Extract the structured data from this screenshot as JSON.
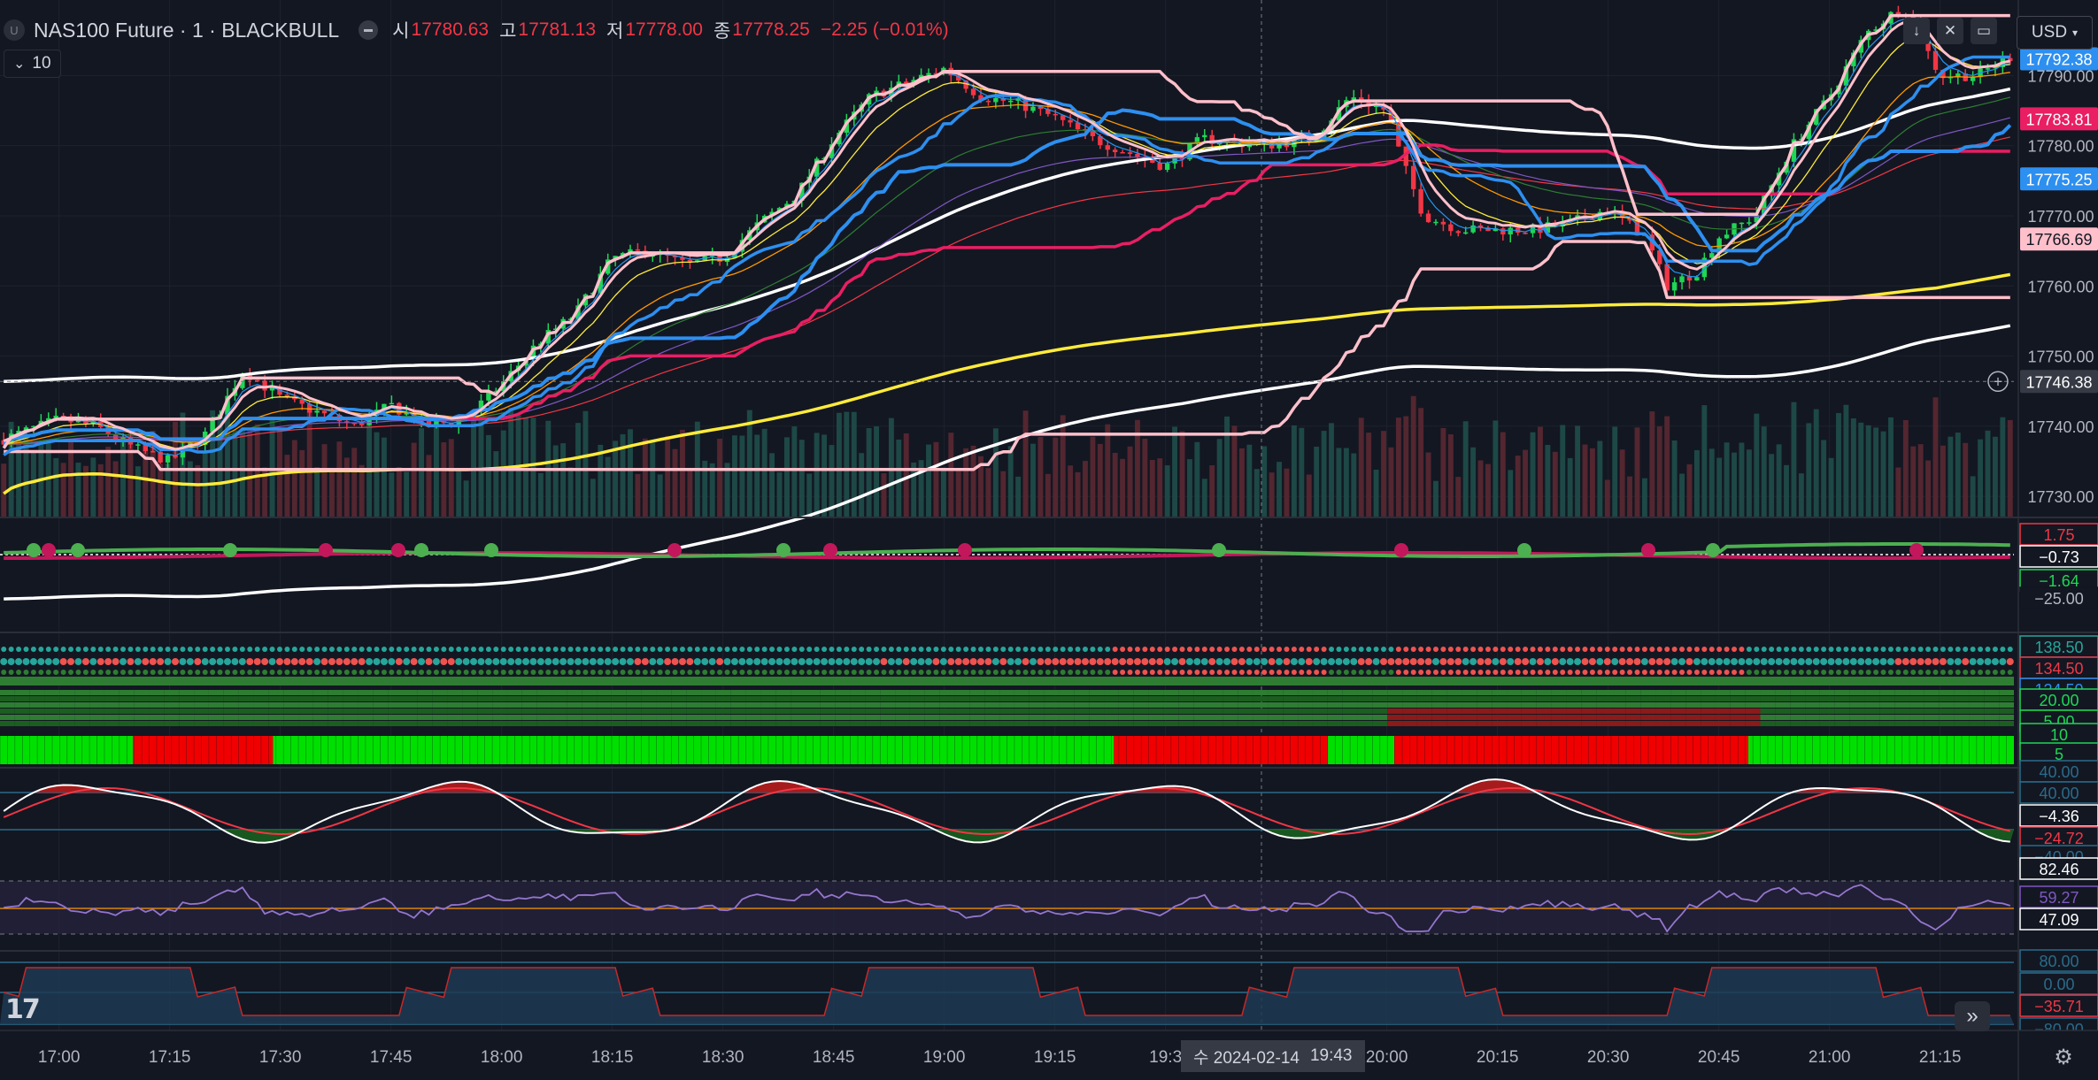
{
  "header": {
    "symbol": "NAS100 Future · 1 · BLACKBULL",
    "symbol_badge": "U",
    "open_label": "시",
    "open": "17780.63",
    "high_label": "고",
    "high": "17781.13",
    "low_label": "저",
    "low": "17778.00",
    "close_label": "종",
    "close": "17778.25",
    "change": "−2.25 (−0.01%)",
    "indicator_count": "10",
    "currency": "USD"
  },
  "crosshair": {
    "date_label": "수  2024-02-14",
    "time_label": "19:43"
  },
  "colors": {
    "background": "#131722",
    "up": "#1fd655",
    "down": "#f23645",
    "ma_blue": "#2d8ff0",
    "ma_pink": "#ffc0cb",
    "ma_crimson": "#e91e63",
    "ma_yellow": "#ffeb3b",
    "ma_white": "#ffffff"
  },
  "chart_data": [
    {
      "type": "candlestick",
      "name": "price",
      "ylim": [
        17727,
        17800
      ],
      "ticks": [
        17730,
        17740,
        17750,
        17760,
        17770,
        17780,
        17790
      ],
      "x_ticks": [
        "17:00",
        "17:15",
        "17:30",
        "17:45",
        "18:00",
        "18:15",
        "18:30",
        "18:45",
        "19:00",
        "19:15",
        "19:3",
        "20:00",
        "20:15",
        "20:30",
        "20:45",
        "21:00",
        "21:15"
      ],
      "close_path": [
        {
          "t": "16:52",
          "v": 17738
        },
        {
          "t": "17:00",
          "v": 17741
        },
        {
          "t": "17:05",
          "v": 17740
        },
        {
          "t": "17:10",
          "v": 17737
        },
        {
          "t": "17:15",
          "v": 17735
        },
        {
          "t": "17:20",
          "v": 17739
        },
        {
          "t": "17:25",
          "v": 17748
        },
        {
          "t": "17:30",
          "v": 17744
        },
        {
          "t": "17:35",
          "v": 17742
        },
        {
          "t": "17:40",
          "v": 17740
        },
        {
          "t": "17:45",
          "v": 17743
        },
        {
          "t": "17:50",
          "v": 17740
        },
        {
          "t": "17:55",
          "v": 17741
        },
        {
          "t": "18:00",
          "v": 17746
        },
        {
          "t": "18:05",
          "v": 17752
        },
        {
          "t": "18:10",
          "v": 17756
        },
        {
          "t": "18:15",
          "v": 17764
        },
        {
          "t": "18:20",
          "v": 17765
        },
        {
          "t": "18:25",
          "v": 17763
        },
        {
          "t": "18:30",
          "v": 17764
        },
        {
          "t": "18:35",
          "v": 17769
        },
        {
          "t": "18:40",
          "v": 17773
        },
        {
          "t": "18:45",
          "v": 17781
        },
        {
          "t": "18:50",
          "v": 17787
        },
        {
          "t": "19:00",
          "v": 17791
        },
        {
          "t": "19:05",
          "v": 17787
        },
        {
          "t": "19:10",
          "v": 17786
        },
        {
          "t": "19:15",
          "v": 17784
        },
        {
          "t": "19:20",
          "v": 17781
        },
        {
          "t": "19:25",
          "v": 17779
        },
        {
          "t": "19:30",
          "v": 17777
        },
        {
          "t": "19:35",
          "v": 17781
        },
        {
          "t": "19:43",
          "v": 17780
        },
        {
          "t": "19:50",
          "v": 17781
        },
        {
          "t": "19:55",
          "v": 17787
        },
        {
          "t": "20:00",
          "v": 17785
        },
        {
          "t": "20:02",
          "v": 17778
        },
        {
          "t": "20:05",
          "v": 17770
        },
        {
          "t": "20:10",
          "v": 17768
        },
        {
          "t": "20:15",
          "v": 17768
        },
        {
          "t": "20:20",
          "v": 17768
        },
        {
          "t": "20:25",
          "v": 17769
        },
        {
          "t": "20:30",
          "v": 17771
        },
        {
          "t": "20:35",
          "v": 17767
        },
        {
          "t": "20:38",
          "v": 17760
        },
        {
          "t": "20:42",
          "v": 17762
        },
        {
          "t": "20:45",
          "v": 17767
        },
        {
          "t": "20:50",
          "v": 17770
        },
        {
          "t": "20:55",
          "v": 17780
        },
        {
          "t": "21:00",
          "v": 17787
        },
        {
          "t": "21:05",
          "v": 17796
        },
        {
          "t": "21:10",
          "v": 17800
        },
        {
          "t": "21:15",
          "v": 17790
        },
        {
          "t": "21:20",
          "v": 17790
        },
        {
          "t": "21:25",
          "v": 17793
        }
      ],
      "price_labels": [
        {
          "value": "17792.38",
          "color": "#2d8ff0"
        },
        {
          "value": "17783.81",
          "color": "#e91e63"
        },
        {
          "value": "17775.25",
          "color": "#2d8ff0"
        },
        {
          "value": "17766.69",
          "color": "#ffc0cb"
        },
        {
          "value": "17746.38",
          "color": "#363a45"
        }
      ]
    },
    {
      "type": "line",
      "name": "pane1",
      "labels": [
        {
          "value": "1.75",
          "color": "#f23645"
        },
        {
          "value": "−0.73",
          "color": "#ffffff"
        },
        {
          "value": "−1.64",
          "color": "#1fd655"
        },
        {
          "value": "−25.00",
          "color": "#131722"
        }
      ]
    },
    {
      "type": "dots",
      "name": "pane2",
      "labels": [
        {
          "value": "138.50",
          "color": "#26a69a"
        },
        {
          "value": "134.50",
          "color": "#f23645"
        },
        {
          "value": "124.50",
          "color": "#2d8ff0"
        }
      ]
    },
    {
      "type": "heatmap",
      "name": "pane3",
      "labels": [
        {
          "value": "20.00",
          "color": "#1fd655"
        },
        {
          "value": "5.00",
          "color": "#1fd655"
        },
        {
          "value": "10",
          "color": "#1fd655"
        },
        {
          "value": "5",
          "color": "#1fd655"
        }
      ],
      "segments": [
        {
          "start": "16:52",
          "end": "17:10",
          "state": "up"
        },
        {
          "start": "17:10",
          "end": "17:29",
          "state": "down"
        },
        {
          "start": "17:29",
          "end": "19:23",
          "state": "up"
        },
        {
          "start": "19:23",
          "end": "19:52",
          "state": "down"
        },
        {
          "start": "19:52",
          "end": "20:01",
          "state": "up"
        },
        {
          "start": "20:01",
          "end": "20:49",
          "state": "down"
        },
        {
          "start": "20:49",
          "end": "21:25",
          "state": "up"
        }
      ]
    },
    {
      "type": "oscillator",
      "name": "pane4",
      "levels": [
        40,
        -40
      ],
      "labels": [
        {
          "value": "40.00",
          "color": "#2a6b8a"
        },
        {
          "value": "40.00",
          "color": "#2a6b8a"
        },
        {
          "value": "−4.36",
          "color": "#ffffff"
        },
        {
          "value": "−24.72",
          "color": "#f23645"
        },
        {
          "value": "−40.00",
          "color": "#2a6b8a"
        }
      ]
    },
    {
      "type": "line",
      "name": "pane5",
      "labels": [
        {
          "value": "82.46",
          "color": "#ffffff"
        },
        {
          "value": "59.27",
          "color": "#7e57c2"
        },
        {
          "value": "47.09",
          "color": "#ffffff"
        }
      ]
    },
    {
      "type": "area",
      "name": "pane6",
      "labels": [
        {
          "value": "80.00",
          "color": "#2a6b8a"
        },
        {
          "value": "0.00",
          "color": "#2a6b8a"
        },
        {
          "value": "−35.71",
          "color": "#f23645"
        },
        {
          "value": "−80.00",
          "color": "#2a6b8a"
        }
      ]
    }
  ]
}
